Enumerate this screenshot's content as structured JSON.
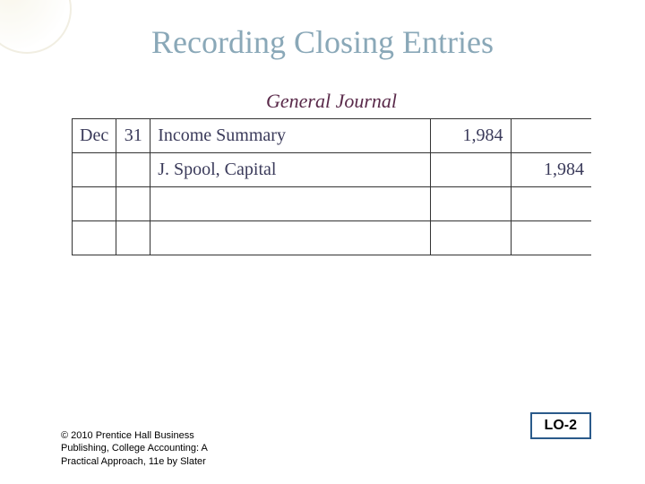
{
  "title": "Recording Closing Entries",
  "title_color": "#8aa8b8",
  "title_fontsize": 36,
  "journal": {
    "heading": "General Journal",
    "heading_color": "#5a2a4a",
    "rows": [
      {
        "month": "Dec",
        "day": "31",
        "desc": "Income Summary",
        "debit": "1,984",
        "credit": ""
      },
      {
        "month": "",
        "day": "",
        "desc": "J. Spool, Capital",
        "debit": "",
        "credit": "1,984",
        "indent": true
      },
      {
        "month": "",
        "day": "",
        "desc": "",
        "debit": "",
        "credit": ""
      },
      {
        "month": "",
        "day": "",
        "desc": "",
        "debit": "",
        "credit": ""
      }
    ],
    "columns": {
      "month_width": 48,
      "day_width": 38,
      "debit_width": 90,
      "credit_width": 90
    },
    "cell_fontsize": 20,
    "cell_color": "#3a3a5a",
    "border_color": "#333333"
  },
  "footer": {
    "line1": "© 2010 Prentice Hall Business",
    "line2": "Publishing, College Accounting: A",
    "line3": "Practical Approach, 11e by Slater"
  },
  "lo_badge": {
    "text": "LO-2",
    "border_color": "#2a5a8a"
  },
  "background_color": "#ffffff"
}
